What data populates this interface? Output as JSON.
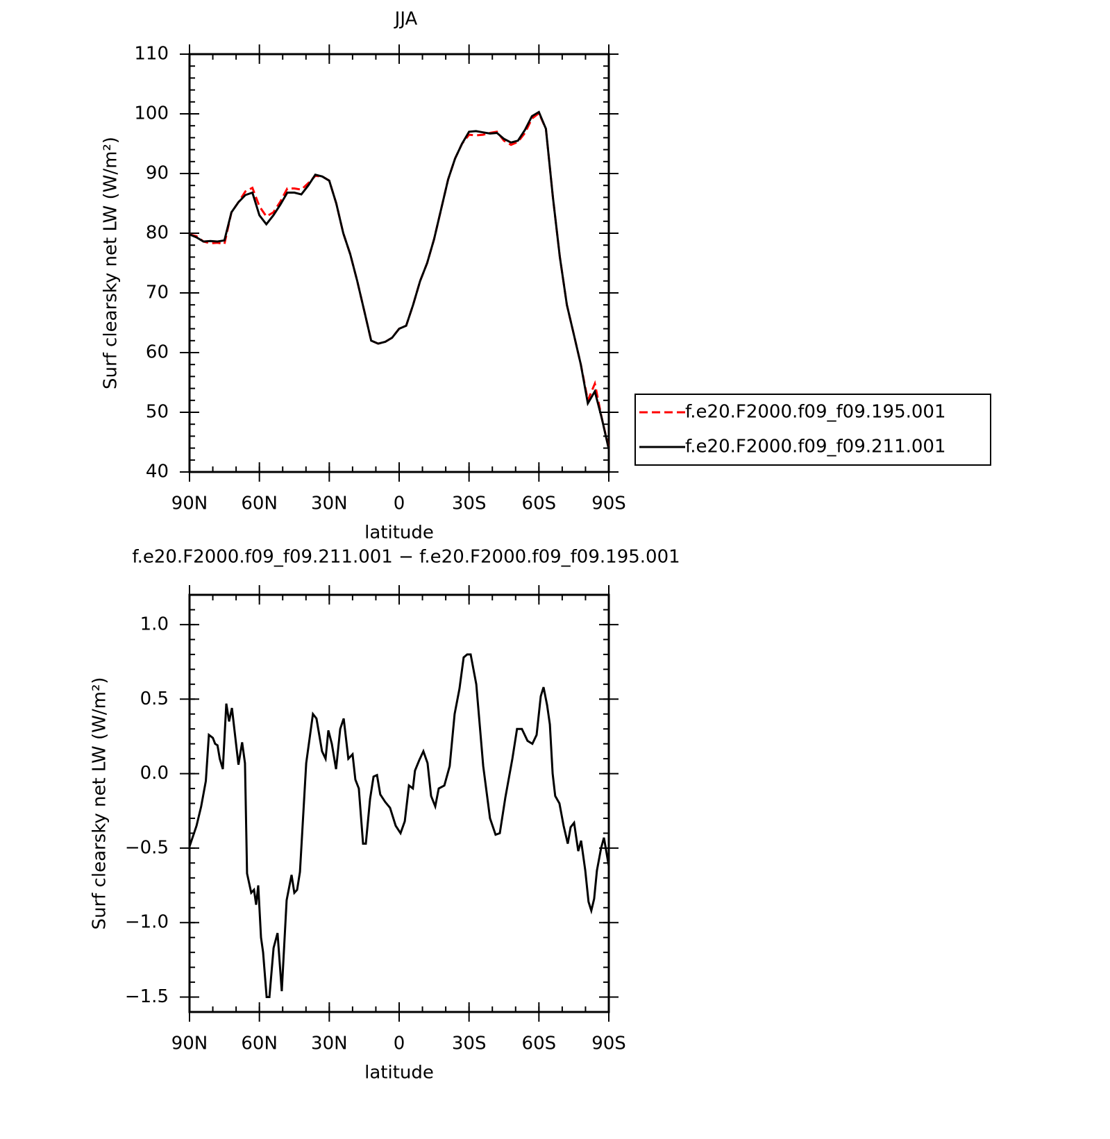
{
  "chart_data": [
    {
      "type": "line",
      "title": "JJA",
      "x_label": "latitude",
      "y_label": "Surf clearsky net LW (W/m²)",
      "x": [
        90,
        87,
        84,
        81,
        78,
        75,
        72,
        69,
        66,
        63,
        60,
        57,
        54,
        51,
        48,
        45,
        42,
        39,
        36,
        33,
        30,
        27,
        24,
        21,
        18,
        15,
        12,
        9,
        6,
        3,
        0,
        -3,
        -6,
        -9,
        -12,
        -15,
        -18,
        -21,
        -24,
        -27,
        -30,
        -33,
        -36,
        -39,
        -42,
        -45,
        -48,
        -51,
        -54,
        -57,
        -60,
        -63,
        -66,
        -69,
        -72,
        -75,
        -78,
        -81,
        -84,
        -87,
        -90
      ],
      "series": [
        {
          "name": "f.e20.F2000.f09_f09.195.001",
          "color": "#ff0000",
          "line_style": "dashed",
          "values": [
            79.8,
            79.5,
            78.6,
            78.3,
            78.4,
            78.2,
            83.5,
            85.2,
            87.0,
            87.6,
            84.5,
            82.8,
            83.5,
            85.3,
            87.5,
            87.5,
            87.3,
            88.4,
            89.6,
            89.5,
            88.8,
            85,
            80,
            76.5,
            72,
            67,
            62,
            61.5,
            61.8,
            62.5,
            64,
            64.5,
            68,
            72,
            75,
            79,
            84,
            89,
            92.5,
            95,
            96.5,
            96.4,
            96.5,
            96.8,
            97.0,
            95.5,
            94.8,
            95.3,
            96.8,
            99.2,
            100.1,
            97.5,
            86,
            76,
            68,
            63,
            58,
            52,
            54.8,
            49,
            44
          ]
        },
        {
          "name": "f.e20.F2000.f09_f09.211.001",
          "color": "#000000",
          "line_style": "solid",
          "values": [
            79.8,
            79.3,
            78.6,
            78.7,
            78.6,
            78.8,
            83.5,
            85.2,
            86.4,
            86.8,
            83.0,
            81.5,
            83.0,
            84.8,
            86.8,
            86.8,
            86.5,
            88.0,
            89.8,
            89.5,
            88.8,
            85,
            80,
            76.5,
            72,
            67,
            62,
            61.5,
            61.8,
            62.5,
            64,
            64.5,
            68,
            72,
            75,
            79,
            84,
            89,
            92.5,
            95,
            97,
            97.1,
            96.9,
            96.7,
            96.8,
            95.8,
            95.2,
            95.5,
            97.3,
            99.6,
            100.3,
            97.5,
            86,
            76,
            68,
            63,
            58,
            51.5,
            53.5,
            49,
            43.8
          ]
        }
      ],
      "xlim": [
        90,
        -90
      ],
      "xticks": [
        {
          "value": 90,
          "label": "90N"
        },
        {
          "value": 60,
          "label": "60N"
        },
        {
          "value": 30,
          "label": "30N"
        },
        0,
        {
          "value": -30,
          "label": "30S"
        },
        {
          "value": -60,
          "label": "60S"
        },
        {
          "value": -90,
          "label": "90S"
        }
      ],
      "ylim": [
        40,
        110
      ],
      "yticks": [
        40,
        50,
        60,
        70,
        80,
        90,
        100,
        110
      ],
      "legend_position": "right",
      "grid": false
    },
    {
      "type": "line",
      "title": "f.e20.F2000.f09_f09.211.001 − f.e20.F2000.f09_f09.195.001",
      "x_label": "latitude",
      "y_label": "Surf clearsky net LW (W/m²)",
      "x": [
        90,
        87,
        85,
        83,
        81.7,
        80,
        79,
        78,
        77,
        75.7,
        74.2,
        73,
        71.8,
        69,
        67.4,
        66.2,
        65.3,
        63.5,
        62.3,
        61.4,
        60.5,
        59.3,
        58.4,
        56.9,
        55.7,
        53.9,
        52.2,
        50.4,
        48.3,
        46.2,
        45,
        43.8,
        42.6,
        39.9,
        37,
        35.5,
        33.1,
        31.6,
        30.4,
        28.9,
        27.1,
        25.3,
        23.8,
        21.8,
        20,
        18.8,
        17.3,
        15.5,
        14.3,
        12.5,
        11,
        9.5,
        8.1,
        6,
        3.9,
        1.5,
        -0.6,
        -2.4,
        -4.2,
        -5.9,
        -6.8,
        -8.6,
        -10.4,
        -12.2,
        -13.7,
        -15.5,
        -17,
        -19.4,
        -21.7,
        -23.8,
        -25.9,
        -27.7,
        -29.2,
        -30.7,
        -33.1,
        -36.1,
        -39,
        -41.4,
        -43.2,
        -45.6,
        -48.6,
        -50.6,
        -52.7,
        -55.1,
        -57.2,
        -59,
        -60.8,
        -62,
        -63.5,
        -64.7,
        -65.9,
        -67,
        -68.8,
        -70.6,
        -72.4,
        -73.6,
        -75.1,
        -76.9,
        -78.1,
        -79.9,
        -81.3,
        -82.5,
        -83.7,
        -84.9,
        -86.7,
        -87.9,
        -90
      ],
      "values": [
        -0.49,
        -0.35,
        -0.22,
        -0.05,
        0.26,
        0.24,
        0.2,
        0.19,
        0.1,
        0.03,
        0.47,
        0.35,
        0.44,
        0.06,
        0.21,
        0.07,
        -0.67,
        -0.8,
        -0.78,
        -0.88,
        -0.75,
        -1.1,
        -1.2,
        -1.5,
        -1.5,
        -1.17,
        -1.07,
        -1.46,
        -0.85,
        -0.68,
        -0.8,
        -0.78,
        -0.66,
        0.07,
        0.4,
        0.37,
        0.15,
        0.1,
        0.29,
        0.2,
        0.03,
        0.3,
        0.37,
        0.1,
        0.13,
        -0.04,
        -0.1,
        -0.47,
        -0.47,
        -0.17,
        -0.02,
        -0.01,
        -0.14,
        -0.19,
        -0.23,
        -0.35,
        -0.4,
        -0.32,
        -0.08,
        -0.1,
        0.02,
        0.09,
        0.15,
        0.07,
        -0.15,
        -0.22,
        -0.1,
        -0.08,
        0.05,
        0.4,
        0.57,
        0.78,
        0.8,
        0.8,
        0.6,
        0.05,
        -0.3,
        -0.41,
        -0.4,
        -0.16,
        0.1,
        0.3,
        0.3,
        0.22,
        0.2,
        0.26,
        0.52,
        0.58,
        0.46,
        0.33,
        0.0,
        -0.15,
        -0.2,
        -0.35,
        -0.47,
        -0.36,
        -0.33,
        -0.52,
        -0.45,
        -0.65,
        -0.86,
        -0.92,
        -0.84,
        -0.65,
        -0.5,
        -0.43,
        -0.62
      ],
      "color": "#000000",
      "line_style": "solid",
      "xlim": [
        90,
        -90
      ],
      "xticks": [
        {
          "value": 90,
          "label": "90N"
        },
        {
          "value": 60,
          "label": "60N"
        },
        {
          "value": 30,
          "label": "30N"
        },
        0,
        {
          "value": -30,
          "label": "30S"
        },
        {
          "value": -60,
          "label": "60S"
        },
        {
          "value": -90,
          "label": "90S"
        }
      ],
      "ylim": [
        -1.6,
        1.2
      ],
      "yticks": [
        {
          "value": -1.5,
          "label": "−1.5"
        },
        {
          "value": -1.0,
          "label": "−1.0"
        },
        {
          "value": -0.5,
          "label": "−0.5"
        },
        {
          "value": 0,
          "label": "0.0"
        },
        0.5,
        {
          "value": 1.0,
          "label": "1.0"
        }
      ],
      "grid": false
    }
  ]
}
